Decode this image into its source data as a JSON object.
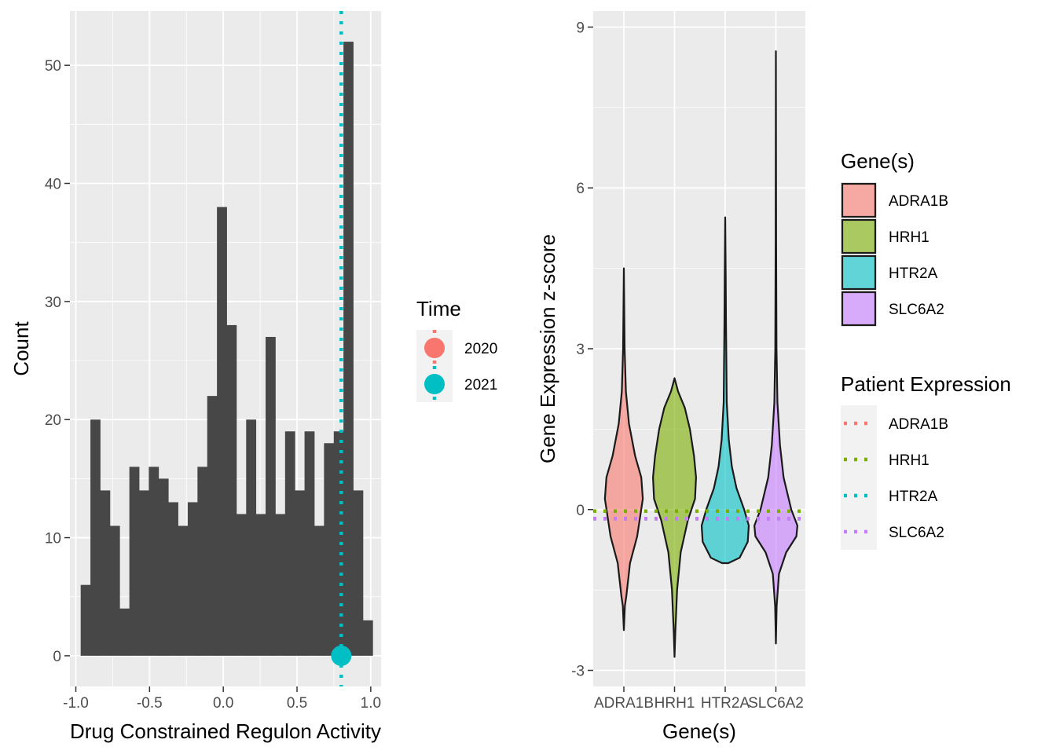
{
  "colors": {
    "panel_bg": "#ebebeb",
    "grid": "#ffffff",
    "hist_fill": "#474747",
    "c2020": "#f8766d",
    "c2021": "#00bfc4",
    "ADRA1B": "#f8766d",
    "HRH1": "#7cae00",
    "HTR2A": "#00bfc4",
    "SLC6A2": "#c77cff",
    "outline": "#1a1a1a",
    "legend_key_bg": "#f2f2f2"
  },
  "chart_data": [
    {
      "type": "bar",
      "subtype": "histogram",
      "xlabel": "Drug Constrained Regulon Activity",
      "ylabel": "Count",
      "xlim": [
        -1.04,
        1.07
      ],
      "ylim": [
        -2.6,
        54.6
      ],
      "x_ticks": [
        -1.0,
        -0.5,
        0.0,
        0.5,
        1.0
      ],
      "x_tick_labels": [
        "-1.0",
        "-0.5",
        "0.0",
        "0.5",
        "1.0"
      ],
      "y_ticks": [
        0,
        10,
        20,
        30,
        40,
        50
      ],
      "y_tick_labels": [
        "0",
        "10",
        "20",
        "30",
        "40",
        "50"
      ],
      "binwidth": 0.066,
      "bins_start": -0.967,
      "values": [
        6,
        20,
        14,
        11,
        4,
        16,
        14,
        16,
        15,
        13,
        11,
        13,
        16,
        22,
        38,
        28,
        12,
        20,
        12,
        27,
        12,
        19,
        14,
        19,
        11,
        18,
        19,
        52,
        14,
        3
      ],
      "vline": {
        "x": 0.8,
        "series": "2021",
        "style": "dotted"
      },
      "point": {
        "x": 0.8,
        "y": 0,
        "series": "2021"
      },
      "legend": {
        "title": "Time",
        "position": "right",
        "entries": [
          {
            "label": "2020",
            "color_key": "c2020"
          },
          {
            "label": "2021",
            "color_key": "c2021"
          }
        ]
      },
      "grid": true
    },
    {
      "type": "violin",
      "xlabel": "Gene(s)",
      "ylabel": "Gene Expression z-score",
      "categories": [
        "ADRA1B",
        "HRH1",
        "HTR2A",
        "SLC6A2"
      ],
      "ylim": [
        -3.3,
        9.3
      ],
      "y_ticks": [
        -3,
        0,
        3,
        6,
        9
      ],
      "y_tick_labels": [
        "-3",
        "0",
        "3",
        "6",
        "9"
      ],
      "series": [
        {
          "name": "ADRA1B",
          "min": -2.25,
          "max": 4.5,
          "profile": [
            [
              -2.25,
              0.0
            ],
            [
              -1.8,
              0.02
            ],
            [
              -1.6,
              0.05
            ],
            [
              -1.0,
              0.12
            ],
            [
              -0.5,
              0.26
            ],
            [
              0.2,
              0.37
            ],
            [
              0.6,
              0.34
            ],
            [
              1.0,
              0.22
            ],
            [
              1.6,
              0.1
            ],
            [
              2.2,
              0.04
            ],
            [
              3.0,
              0.015
            ],
            [
              4.5,
              0.0
            ]
          ]
        },
        {
          "name": "HRH1",
          "min": -2.75,
          "max": 2.45,
          "profile": [
            [
              -2.75,
              0.0
            ],
            [
              -2.3,
              0.015
            ],
            [
              -1.5,
              0.05
            ],
            [
              -0.8,
              0.12
            ],
            [
              -0.2,
              0.26
            ],
            [
              0.2,
              0.4
            ],
            [
              0.6,
              0.42
            ],
            [
              1.0,
              0.38
            ],
            [
              1.5,
              0.3
            ],
            [
              1.9,
              0.2
            ],
            [
              2.2,
              0.07
            ],
            [
              2.45,
              0.0
            ]
          ]
        },
        {
          "name": "HTR2A",
          "min": -1.0,
          "max": 5.45,
          "profile": [
            [
              -1.0,
              0.06
            ],
            [
              -0.9,
              0.28
            ],
            [
              -0.6,
              0.44
            ],
            [
              -0.3,
              0.46
            ],
            [
              0.0,
              0.37
            ],
            [
              0.4,
              0.22
            ],
            [
              0.8,
              0.13
            ],
            [
              1.3,
              0.07
            ],
            [
              2.0,
              0.03
            ],
            [
              3.5,
              0.015
            ],
            [
              4.3,
              0.01
            ],
            [
              5.45,
              0.0
            ]
          ]
        },
        {
          "name": "SLC6A2",
          "min": -2.5,
          "max": 8.55,
          "profile": [
            [
              -2.5,
              0.0
            ],
            [
              -1.8,
              0.015
            ],
            [
              -1.2,
              0.06
            ],
            [
              -0.8,
              0.2
            ],
            [
              -0.5,
              0.4
            ],
            [
              -0.3,
              0.42
            ],
            [
              0.0,
              0.3
            ],
            [
              0.6,
              0.15
            ],
            [
              1.2,
              0.08
            ],
            [
              2.0,
              0.03
            ],
            [
              3.0,
              0.012
            ],
            [
              5.0,
              0.005
            ],
            [
              8.55,
              0.0
            ]
          ]
        }
      ],
      "hlines": [
        {
          "name": "ADRA1B",
          "y": -0.17
        },
        {
          "name": "HRH1",
          "y": -0.03
        },
        {
          "name": "HTR2A",
          "y": -0.17
        },
        {
          "name": "SLC6A2",
          "y": -0.17
        }
      ],
      "legends": [
        {
          "title": "Gene(s)",
          "entries": [
            "ADRA1B",
            "HRH1",
            "HTR2A",
            "SLC6A2"
          ]
        },
        {
          "title": "Patient Expression",
          "entries": [
            "ADRA1B",
            "HRH1",
            "HTR2A",
            "SLC6A2"
          ]
        }
      ],
      "grid": true
    }
  ]
}
